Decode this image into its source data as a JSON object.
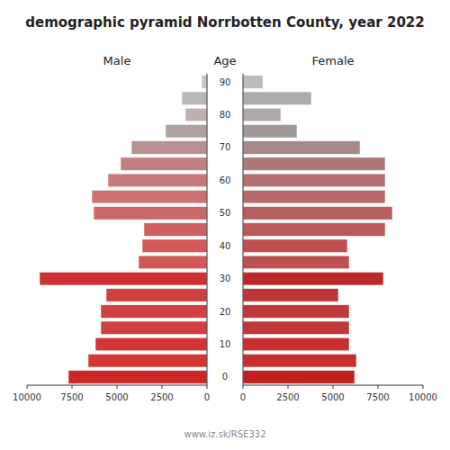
{
  "chart_data": {
    "type": "pyramid",
    "orientation": "horizontal",
    "title": "demographic pyramid Norrbotten County, year 2022",
    "y_label": "Age",
    "annotations": [
      {
        "text": "www.iz.sk/RSE332"
      }
    ],
    "categories": [
      0,
      null,
      10,
      null,
      20,
      null,
      30,
      null,
      40,
      null,
      50,
      null,
      60,
      null,
      70,
      null,
      80,
      null,
      90
    ],
    "series": [
      {
        "name": "Male",
        "values": [
          7700,
          6600,
          6200,
          5900,
          5900,
          5600,
          9300,
          3800,
          3600,
          3500,
          6300,
          6400,
          5500,
          4800,
          4200,
          2300,
          1200,
          1400,
          300
        ],
        "colors": [
          "#cd2626",
          "#d43535",
          "#d43535",
          "#d04040",
          "#d04040",
          "#cd4040",
          "#cd3030",
          "#d45858",
          "#d45858",
          "#d06060",
          "#cc6868",
          "#cc7070",
          "#c87878",
          "#c08080",
          "#b89090",
          "#b0a0a0",
          "#c0b0b0",
          "#b8b8b8",
          "#c8c8c8"
        ]
      },
      {
        "name": "Female",
        "values": [
          6200,
          6300,
          5900,
          5900,
          5900,
          5300,
          7800,
          5900,
          5800,
          7900,
          8300,
          7900,
          7900,
          7900,
          6500,
          3000,
          2100,
          3800,
          1100
        ],
        "colors": [
          "#c02020",
          "#c83030",
          "#c83030",
          "#c03838",
          "#c03838",
          "#bc3838",
          "#bc2828",
          "#c05050",
          "#c05050",
          "#bc5858",
          "#b86060",
          "#b86868",
          "#b47070",
          "#ac7878",
          "#a88888",
          "#a09898",
          "#b0a8a8",
          "#acacac",
          "#bcbcbc"
        ]
      }
    ],
    "xlim": [
      0,
      10000
    ],
    "xticks": [
      0,
      2500,
      5000,
      7500,
      10000
    ],
    "grid": false
  }
}
